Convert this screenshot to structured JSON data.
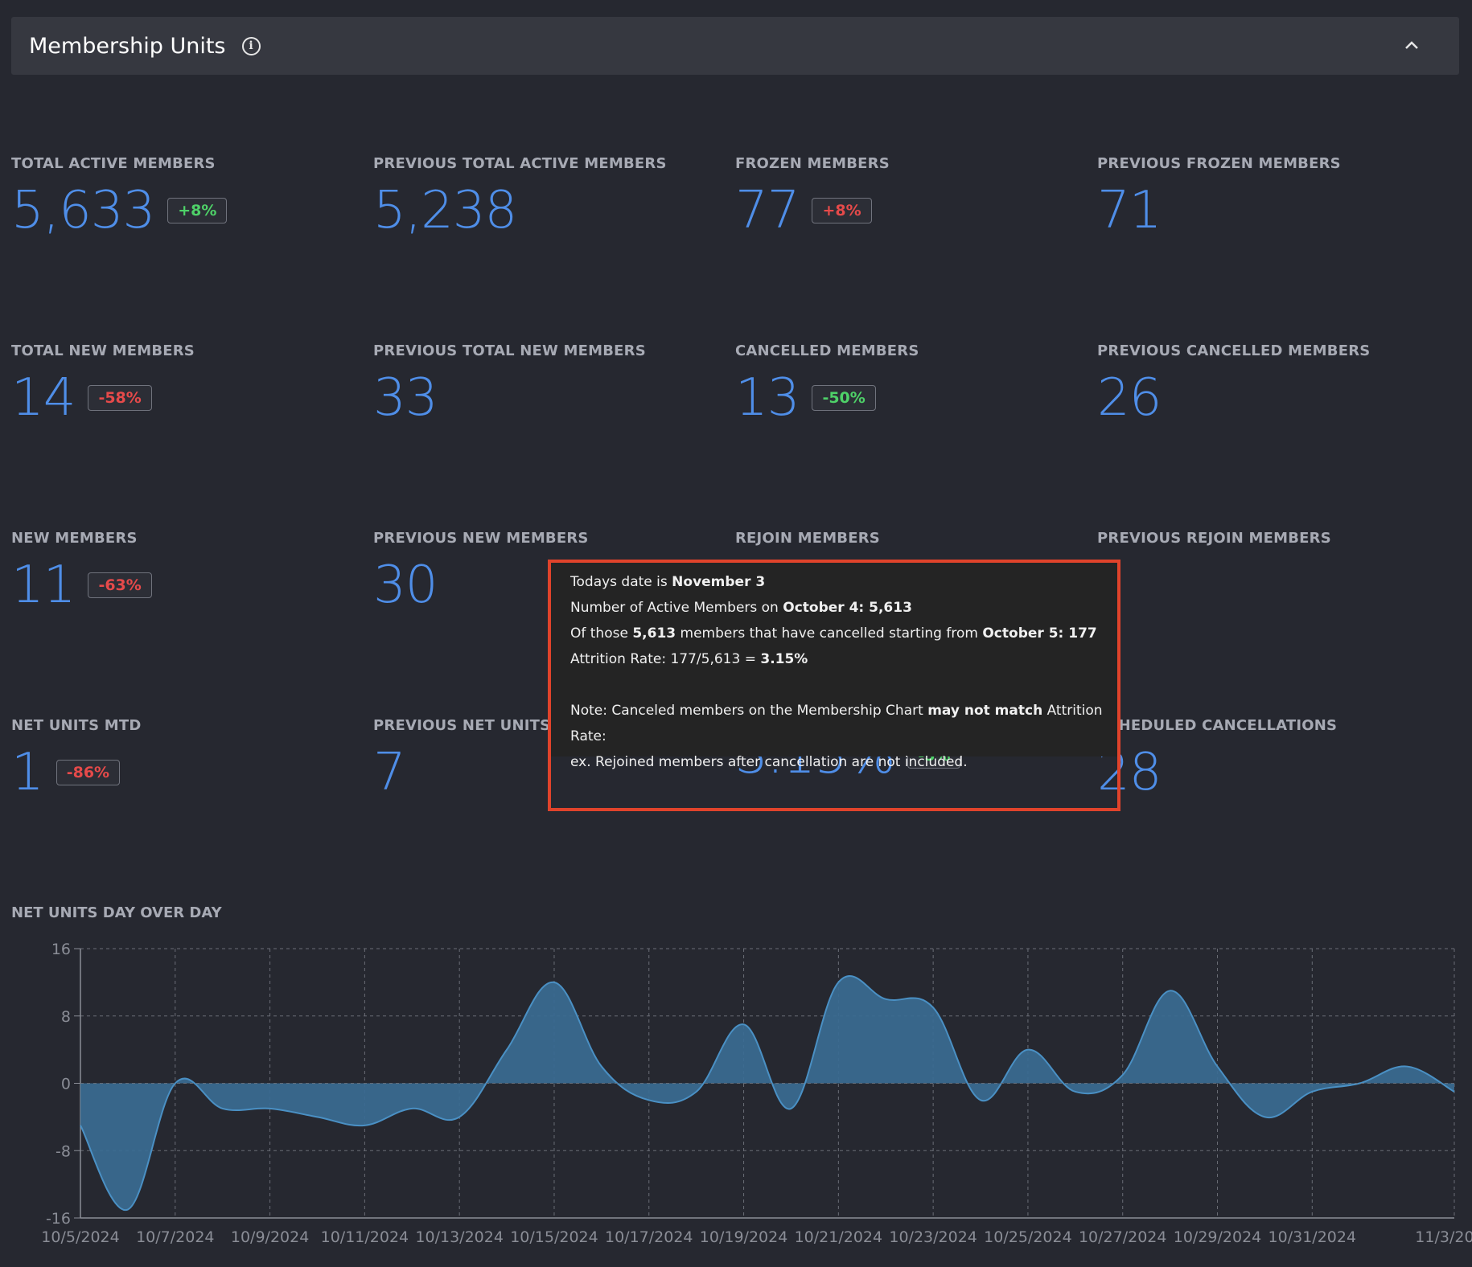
{
  "header": {
    "title": "Membership Units",
    "info_icon": "info-circle-icon",
    "collapse_icon": "chevron-up-icon"
  },
  "metrics": [
    {
      "label": "TOTAL ACTIVE MEMBERS",
      "value": "5,633",
      "badge": "+8%",
      "badge_color": "green"
    },
    {
      "label": "PREVIOUS TOTAL ACTIVE MEMBERS",
      "value": "5,238"
    },
    {
      "label": "FROZEN MEMBERS",
      "value": "77",
      "badge": "+8%",
      "badge_color": "red"
    },
    {
      "label": "PREVIOUS FROZEN MEMBERS",
      "value": "71"
    },
    {
      "label": "TOTAL NEW MEMBERS",
      "value": "14",
      "badge": "-58%",
      "badge_color": "red"
    },
    {
      "label": "PREVIOUS TOTAL NEW MEMBERS",
      "value": "33"
    },
    {
      "label": "CANCELLED MEMBERS",
      "value": "13",
      "badge": "-50%",
      "badge_color": "green"
    },
    {
      "label": "PREVIOUS CANCELLED MEMBERS",
      "value": "26"
    },
    {
      "label": "NEW MEMBERS",
      "value": "11",
      "badge": "-63%",
      "badge_color": "red"
    },
    {
      "label": "PREVIOUS NEW MEMBERS",
      "value": "30"
    },
    {
      "label": "REJOIN MEMBERS",
      "value": ""
    },
    {
      "label": "PREVIOUS REJOIN MEMBERS",
      "value": ""
    },
    {
      "label": "NET UNITS MTD",
      "value": "1",
      "badge": "-86%",
      "badge_color": "red"
    },
    {
      "label": "PREVIOUS NET UNITS MTD",
      "value": "7"
    },
    {
      "label": "",
      "value": "3.15%",
      "badge": "-5%",
      "badge_color": "green"
    },
    {
      "label": "SCHEDULED CANCELLATIONS",
      "value": "28"
    }
  ],
  "tooltip": {
    "line1_prefix": "Todays date is ",
    "line1_date": "November 3",
    "line2_prefix": "Number of Active Members on ",
    "line2_bold": "October 4: 5,613",
    "line3_prefix": "Of those ",
    "line3_bold1": "5,613",
    "line3_mid": " members that have cancelled starting from ",
    "line3_bold2": "October 5: 177",
    "line4_prefix": "Attrition Rate: 177/5,613 = ",
    "line4_bold": "3.15%",
    "note_prefix": "Note: Canceled members on the Membership Chart ",
    "note_bold": "may not match",
    "note_suffix": " Attrition Rate:",
    "note_line2": "ex. Rejoined members after cancellation are not included."
  },
  "chart_title": "NET UNITS DAY OVER DAY",
  "chart_data": {
    "type": "area",
    "title": "NET UNITS DAY OVER DAY",
    "x": [
      "10/5/2024",
      "10/6/2024",
      "10/7/2024",
      "10/8/2024",
      "10/9/2024",
      "10/10/2024",
      "10/11/2024",
      "10/12/2024",
      "10/13/2024",
      "10/14/2024",
      "10/15/2024",
      "10/16/2024",
      "10/17/2024",
      "10/18/2024",
      "10/19/2024",
      "10/20/2024",
      "10/21/2024",
      "10/22/2024",
      "10/23/2024",
      "10/24/2024",
      "10/25/2024",
      "10/26/2024",
      "10/27/2024",
      "10/28/2024",
      "10/29/2024",
      "10/30/2024",
      "10/31/2024",
      "11/1/2024",
      "11/2/2024",
      "11/3/2024"
    ],
    "values": [
      -5,
      -15,
      0,
      -3,
      -3,
      -4,
      -5,
      -3,
      -4,
      4,
      12,
      2,
      -2,
      -1,
      7,
      -3,
      12,
      10,
      9,
      -2,
      4,
      -1,
      1,
      11,
      2,
      -4,
      -1,
      0,
      2,
      -1
    ],
    "x_tick_labels": [
      "10/5/2024",
      "10/7/2024",
      "10/9/2024",
      "10/11/2024",
      "10/13/2024",
      "10/15/2024",
      "10/17/2024",
      "10/19/2024",
      "10/21/2024",
      "10/23/2024",
      "10/25/2024",
      "10/27/2024",
      "10/29/2024",
      "10/31/2024",
      "11/3/2024"
    ],
    "y_ticks": [
      16,
      8,
      0,
      -8,
      -16
    ],
    "ylim": [
      -16,
      16
    ],
    "fill_color": "#3a6b92",
    "line_color": "#4a90c4",
    "grid": true
  }
}
